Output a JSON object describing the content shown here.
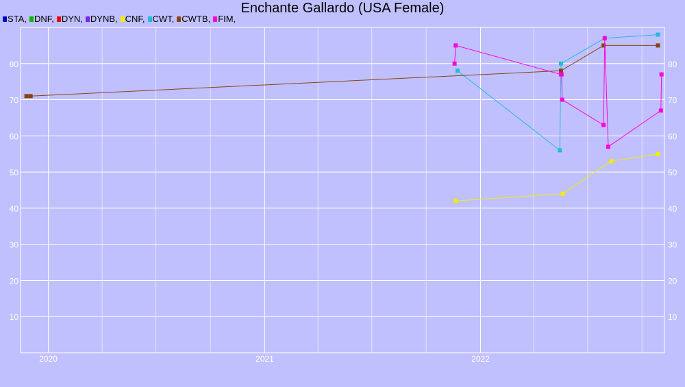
{
  "chart_data": {
    "type": "line",
    "title": "Enchante Gallardo (USA Female)",
    "xlabel": "",
    "ylabel": "",
    "x_ticks": [
      "2020",
      "2021",
      "2022"
    ],
    "y_ticks": [
      10,
      20,
      30,
      40,
      50,
      60,
      70,
      80
    ],
    "ylim": [
      0,
      90
    ],
    "grid": true,
    "legend_position": "top-left",
    "legend": [
      {
        "label": "STA,",
        "color": "#0000cc"
      },
      {
        "label": "DNF,",
        "color": "#00bb00"
      },
      {
        "label": "DYN,",
        "color": "#ee0000"
      },
      {
        "label": "DYNB,",
        "color": "#7722ee"
      },
      {
        "label": "CNF,",
        "color": "#eeee00"
      },
      {
        "label": "CWT,",
        "color": "#22bbdd"
      },
      {
        "label": "CWTB,",
        "color": "#884411"
      },
      {
        "label": "FIM,",
        "color": "#ff00dd"
      }
    ],
    "series": [
      {
        "name": "CNF",
        "color": "#eeee00",
        "points": [
          [
            "2021-11-20",
            42
          ],
          [
            "2022-05-20",
            44
          ],
          [
            "2022-08-10",
            53
          ],
          [
            "2022-10-28",
            55
          ]
        ]
      },
      {
        "name": "CWT",
        "color": "#22bbdd",
        "points": [
          [
            "2021-11-23",
            78
          ],
          [
            "2022-05-15",
            56
          ],
          [
            "2022-05-17",
            80
          ],
          [
            "2022-07-30",
            87
          ],
          [
            "2022-10-28",
            88
          ]
        ]
      },
      {
        "name": "CWTB",
        "color": "#884411",
        "points": [
          [
            "2019-11-25",
            71
          ],
          [
            "2019-12-02",
            71
          ],
          [
            "2022-05-17",
            78
          ],
          [
            "2022-07-28",
            85
          ],
          [
            "2022-10-28",
            85
          ]
        ]
      },
      {
        "name": "FIM",
        "color": "#ff00dd",
        "points": [
          [
            "2021-11-18",
            80
          ],
          [
            "2021-11-20",
            85
          ],
          [
            "2022-05-17",
            77
          ],
          [
            "2022-05-18",
            77
          ],
          [
            "2022-05-19",
            70
          ],
          [
            "2022-07-28",
            63
          ],
          [
            "2022-07-30",
            87
          ],
          [
            "2022-08-05",
            57
          ],
          [
            "2022-11-02",
            67
          ],
          [
            "2022-11-03",
            77
          ]
        ]
      }
    ]
  }
}
